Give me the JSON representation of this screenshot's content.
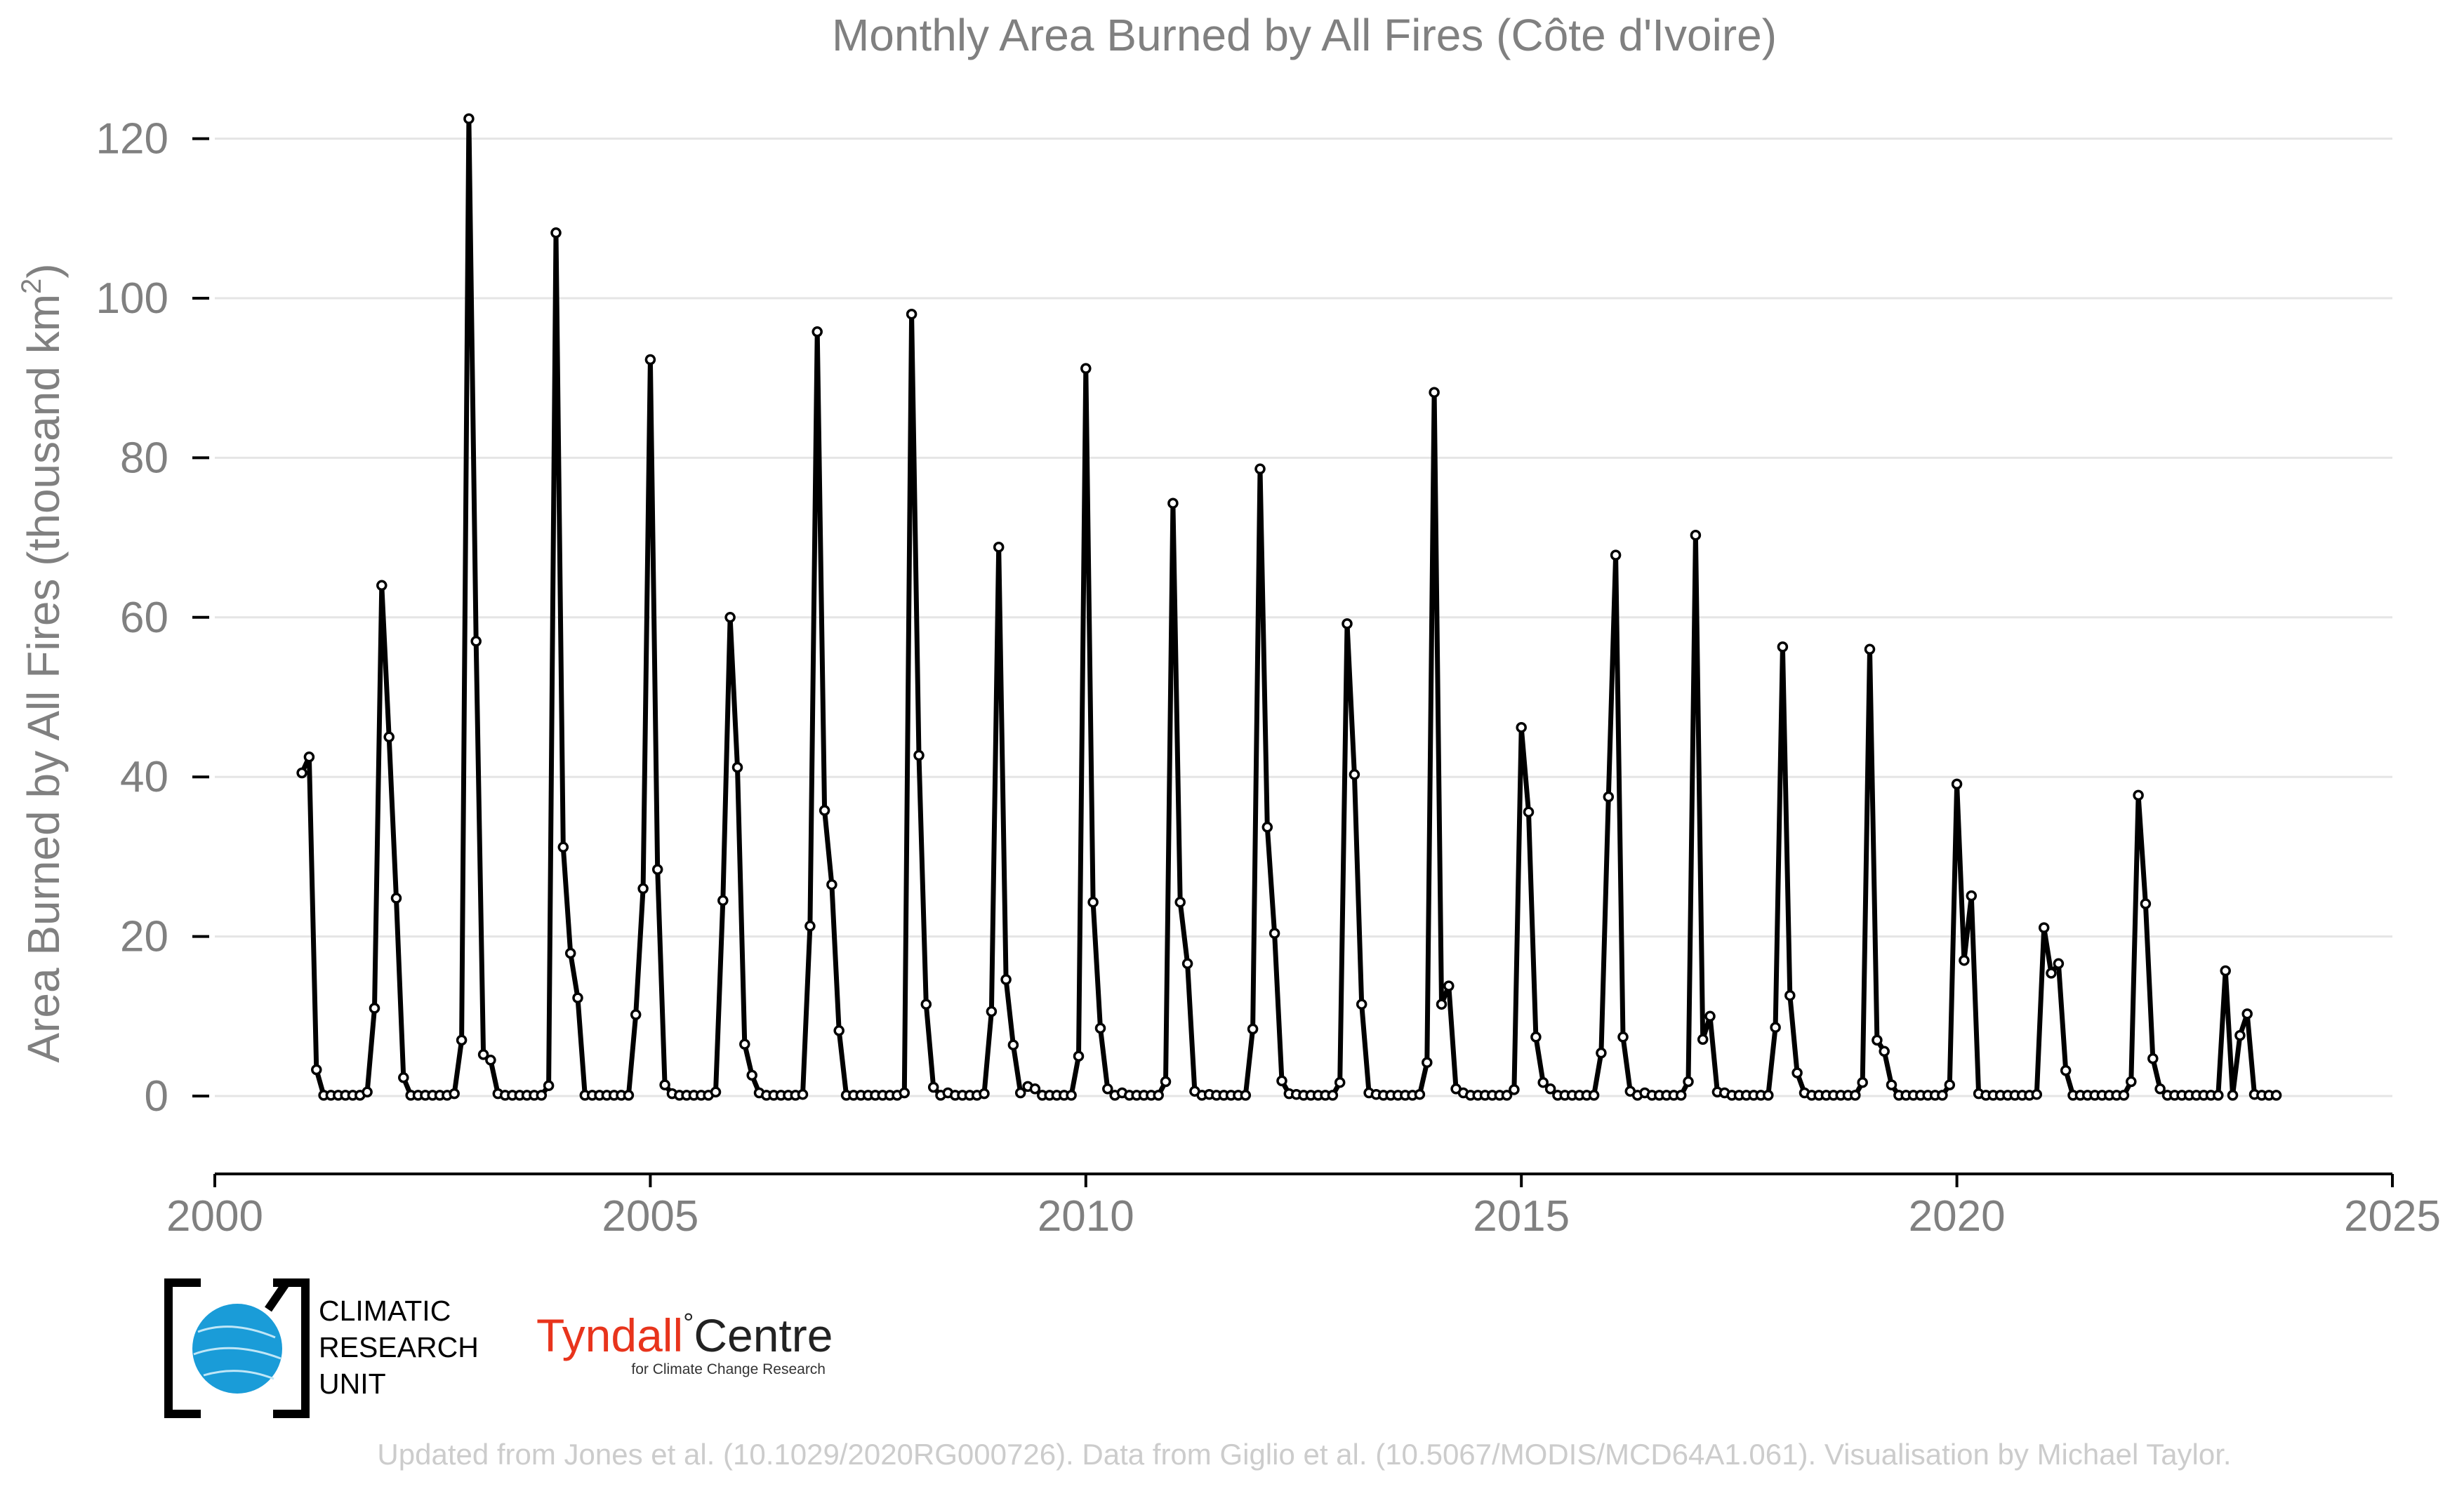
{
  "chart_data": {
    "type": "line",
    "title": "Monthly Area Burned by All Fires (Côte d'Ivoire)",
    "ylabel_main": "Area Burned by All Fires (thousand km",
    "ylabel_sup": "2",
    "ylabel_close": ")",
    "xlabel": "",
    "xlim": [
      2000,
      2025
    ],
    "ylim": [
      -10,
      124
    ],
    "x_ticks": [
      2000,
      2005,
      2010,
      2015,
      2020,
      2025
    ],
    "y_ticks": [
      0,
      20,
      40,
      60,
      80,
      100,
      120
    ],
    "grid": "horizontal",
    "legend": "none",
    "series_color": "#000000",
    "series": [
      {
        "start": "2001-01",
        "frequency": "monthly",
        "values": [
          40.5,
          42.5,
          3.3,
          0.1,
          0.1,
          0.1,
          0.1,
          0.1,
          0.1,
          0.5,
          11.0,
          64.0,
          45.0,
          24.8,
          2.3,
          0.1,
          0.1,
          0.1,
          0.1,
          0.1,
          0.1,
          0.3,
          7.0,
          122.5,
          57.0,
          5.2,
          4.5,
          0.3,
          0.1,
          0.1,
          0.1,
          0.1,
          0.1,
          0.1,
          1.3,
          108.2,
          31.2,
          17.9,
          12.3,
          0.1,
          0.1,
          0.1,
          0.1,
          0.1,
          0.1,
          0.1,
          10.2,
          26.0,
          92.3,
          28.4,
          1.4,
          0.3,
          0.1,
          0.1,
          0.1,
          0.1,
          0.1,
          0.5,
          24.5,
          60.0,
          41.2,
          6.5,
          2.6,
          0.4,
          0.1,
          0.1,
          0.1,
          0.1,
          0.1,
          0.2,
          21.3,
          95.8,
          35.8,
          26.5,
          8.2,
          0.1,
          0.1,
          0.1,
          0.1,
          0.1,
          0.1,
          0.1,
          0.1,
          0.4,
          98.0,
          42.7,
          11.5,
          1.1,
          0.1,
          0.4,
          0.1,
          0.1,
          0.1,
          0.1,
          0.3,
          10.6,
          68.8,
          14.6,
          6.4,
          0.4,
          1.2,
          0.9,
          0.1,
          0.1,
          0.1,
          0.1,
          0.1,
          5.0,
          91.2,
          24.3,
          8.5,
          0.9,
          0.1,
          0.4,
          0.1,
          0.1,
          0.1,
          0.1,
          0.1,
          1.8,
          74.3,
          24.3,
          16.6,
          0.6,
          0.1,
          0.2,
          0.1,
          0.1,
          0.1,
          0.1,
          0.1,
          8.4,
          78.6,
          33.7,
          20.4,
          1.9,
          0.3,
          0.2,
          0.1,
          0.1,
          0.1,
          0.1,
          0.1,
          1.7,
          59.2,
          40.3,
          11.5,
          0.4,
          0.2,
          0.1,
          0.1,
          0.1,
          0.1,
          0.1,
          0.2,
          4.2,
          88.2,
          11.5,
          13.8,
          0.9,
          0.4,
          0.1,
          0.1,
          0.1,
          0.1,
          0.1,
          0.1,
          0.8,
          46.2,
          35.6,
          7.4,
          1.7,
          0.9,
          0.1,
          0.1,
          0.1,
          0.1,
          0.1,
          0.1,
          5.4,
          37.5,
          67.8,
          7.4,
          0.6,
          0.1,
          0.4,
          0.1,
          0.1,
          0.1,
          0.1,
          0.1,
          1.8,
          70.3,
          7.1,
          10.0,
          0.5,
          0.4,
          0.1,
          0.1,
          0.1,
          0.1,
          0.1,
          0.1,
          8.6,
          56.3,
          12.6,
          2.9,
          0.4,
          0.1,
          0.1,
          0.1,
          0.1,
          0.1,
          0.1,
          0.1,
          1.7,
          56.0,
          7.0,
          5.6,
          1.4,
          0.1,
          0.1,
          0.1,
          0.1,
          0.1,
          0.1,
          0.1,
          1.4,
          39.1,
          17.0,
          25.1,
          0.3,
          0.1,
          0.1,
          0.1,
          0.1,
          0.1,
          0.1,
          0.1,
          0.2,
          21.1,
          15.4,
          16.6,
          3.2,
          0.1,
          0.1,
          0.1,
          0.1,
          0.1,
          0.1,
          0.1,
          0.1,
          1.8,
          37.7,
          24.1,
          4.7,
          0.9,
          0.1,
          0.1,
          0.1,
          0.1,
          0.1,
          0.1,
          0.1,
          0.1,
          15.7,
          0.1,
          7.6,
          10.3,
          0.2,
          0.1,
          0.1,
          0.1
        ]
      }
    ]
  },
  "footer": {
    "credit": "Updated from Jones et al. (10.1029/2020RG000726). Data from Giglio et al. (10.5067/MODIS/MCD64A1.061). Visualisation by Michael Taylor."
  },
  "logos": {
    "cru": {
      "line1": "CLIMATIC",
      "line2": "RESEARCH",
      "line3": "UNIT",
      "color": "#1a9cd8"
    },
    "tyndall": {
      "name": "Tyndall",
      "degree": "°",
      "centre": "Centre",
      "sub": "for Climate Change Research",
      "name_color": "#e8341c",
      "centre_color": "#222222"
    }
  }
}
